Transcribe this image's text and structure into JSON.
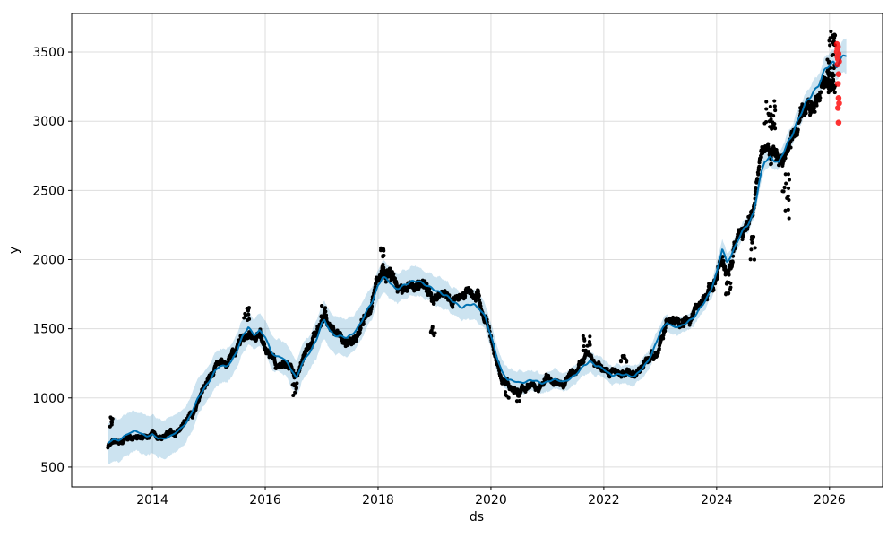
{
  "chart_data": {
    "type": "scatter",
    "subtype": "prophet-forecast (observed points + forecast line + uncertainty band + anomalies)",
    "title": "",
    "xlabel": "ds",
    "ylabel": "y",
    "xlim": [
      2012.57,
      2026.94
    ],
    "ylim": [
      357,
      3779
    ],
    "x_ticks": [
      2014,
      2016,
      2018,
      2020,
      2022,
      2024,
      2026
    ],
    "y_ticks": [
      500,
      1000,
      1500,
      2000,
      2500,
      3000,
      3500
    ],
    "grid": true,
    "legend": false,
    "colors": {
      "forecast_line": "#0072B2",
      "uncertainty_band": "rgba(0,114,178,0.2)",
      "observed_points": "#000000",
      "anomaly_points": "#ff0000",
      "gridline": "#dddddd",
      "frame": "#000000"
    },
    "forecast_line": {
      "name": "yhat",
      "x": [
        2013.21,
        2013.3,
        2013.4,
        2013.5,
        2013.6,
        2013.7,
        2013.8,
        2013.9,
        2014.0,
        2014.1,
        2014.2,
        2014.3,
        2014.45,
        2014.6,
        2014.7,
        2014.8,
        2014.9,
        2015.0,
        2015.1,
        2015.2,
        2015.3,
        2015.4,
        2015.5,
        2015.6,
        2015.7,
        2015.8,
        2015.9,
        2016.0,
        2016.1,
        2016.2,
        2016.3,
        2016.4,
        2016.5,
        2016.55,
        2016.65,
        2016.8,
        2016.9,
        2017.0,
        2017.05,
        2017.15,
        2017.25,
        2017.35,
        2017.45,
        2017.55,
        2017.62,
        2017.7,
        2017.8,
        2017.9,
        2018.0,
        2018.08,
        2018.18,
        2018.3,
        2018.4,
        2018.5,
        2018.6,
        2018.7,
        2018.8,
        2018.9,
        2019.0,
        2019.1,
        2019.2,
        2019.3,
        2019.4,
        2019.5,
        2019.6,
        2019.7,
        2019.8,
        2019.9,
        2020.0,
        2020.1,
        2020.2,
        2020.3,
        2020.4,
        2020.5,
        2020.7,
        2020.9,
        2021.1,
        2021.3,
        2021.5,
        2021.65,
        2021.75,
        2021.85,
        2022.0,
        2022.15,
        2022.3,
        2022.4,
        2022.55,
        2022.7,
        2022.85,
        2023.0,
        2023.12,
        2023.22,
        2023.35,
        2023.5,
        2023.65,
        2023.8,
        2023.9,
        2024.0,
        2024.1,
        2024.18,
        2024.28,
        2024.4,
        2024.55,
        2024.65,
        2024.75,
        2024.85,
        2024.95,
        2025.05,
        2025.1,
        2025.2,
        2025.3,
        2025.4,
        2025.5,
        2025.6,
        2025.7,
        2025.8,
        2025.9,
        2026.0,
        2026.07,
        2026.12,
        2026.18,
        2026.25,
        2026.3
      ],
      "y": [
        672,
        700,
        688,
        726,
        750,
        758,
        742,
        726,
        736,
        704,
        706,
        722,
        756,
        820,
        900,
        990,
        1056,
        1120,
        1190,
        1228,
        1226,
        1270,
        1340,
        1440,
        1516,
        1462,
        1480,
        1438,
        1342,
        1300,
        1288,
        1248,
        1184,
        1145,
        1240,
        1340,
        1420,
        1532,
        1556,
        1480,
        1456,
        1444,
        1428,
        1468,
        1502,
        1548,
        1620,
        1700,
        1822,
        1872,
        1842,
        1794,
        1806,
        1816,
        1836,
        1856,
        1830,
        1794,
        1782,
        1770,
        1740,
        1700,
        1678,
        1660,
        1670,
        1668,
        1650,
        1590,
        1440,
        1300,
        1190,
        1130,
        1118,
        1112,
        1126,
        1110,
        1128,
        1122,
        1160,
        1240,
        1268,
        1230,
        1212,
        1162,
        1166,
        1172,
        1152,
        1220,
        1320,
        1468,
        1552,
        1520,
        1506,
        1558,
        1608,
        1700,
        1792,
        1904,
        2072,
        1976,
        2060,
        2160,
        2250,
        2340,
        2550,
        2700,
        2740,
        2726,
        2700,
        2780,
        2870,
        2980,
        3060,
        3130,
        3210,
        3270,
        3345,
        3400,
        3428,
        3412,
        3448,
        3465,
        3470
      ]
    },
    "uncertainty_band": {
      "name": "yhat_lower / yhat_upper",
      "x": [
        2013.21,
        2014.0,
        2015.0,
        2015.8,
        2016.5,
        2017.0,
        2017.5,
        2018.0,
        2018.7,
        2019.5,
        2020.1,
        2020.4,
        2021.0,
        2021.5,
        2022.0,
        2022.5,
        2023.0,
        2023.5,
        2024.0,
        2024.5,
        2025.0,
        2025.5,
        2025.9,
        2026.1,
        2026.3
      ],
      "half_width": [
        150,
        140,
        125,
        115,
        120,
        140,
        130,
        110,
        105,
        100,
        95,
        80,
        70,
        68,
        72,
        70,
        62,
        58,
        62,
        56,
        60,
        70,
        80,
        95,
        118
      ]
    },
    "observed_points": {
      "name": "y (daily observations)",
      "start": 2013.21,
      "end": 2026.1,
      "per_year": 261,
      "noise": {
        "seed": 42,
        "phi": 0.982,
        "step_sd": 0.33,
        "frac": 0.0165,
        "daily_frac": 0.005,
        "clip_frac": 0.075
      }
    },
    "outlier_clusters": [
      {
        "t0": 2013.24,
        "t1": 2013.3,
        "lo": 790,
        "hi": 862,
        "n": 8
      },
      {
        "t0": 2015.62,
        "t1": 2015.74,
        "lo": 1560,
        "hi": 1655,
        "n": 10
      },
      {
        "t0": 2016.48,
        "t1": 2016.57,
        "lo": 1015,
        "hi": 1115,
        "n": 10
      },
      {
        "t0": 2016.98,
        "t1": 2017.1,
        "lo": 1580,
        "hi": 1668,
        "n": 8
      },
      {
        "t0": 2018.03,
        "t1": 2018.11,
        "lo": 2015,
        "hi": 2088,
        "n": 8
      },
      {
        "t0": 2018.92,
        "t1": 2019.01,
        "lo": 1448,
        "hi": 1535,
        "n": 10
      },
      {
        "t0": 2020.25,
        "t1": 2020.52,
        "lo": 975,
        "hi": 1072,
        "n": 14
      },
      {
        "t0": 2021.62,
        "t1": 2021.76,
        "lo": 1335,
        "hi": 1456,
        "n": 12
      },
      {
        "t0": 2022.3,
        "t1": 2022.42,
        "lo": 1240,
        "hi": 1318,
        "n": 8
      },
      {
        "t0": 2024.16,
        "t1": 2024.26,
        "lo": 1740,
        "hi": 1860,
        "n": 10
      },
      {
        "t0": 2024.6,
        "t1": 2024.68,
        "lo": 1972,
        "hi": 2168,
        "n": 9
      },
      {
        "t0": 2024.85,
        "t1": 2025.04,
        "lo": 2935,
        "hi": 3150,
        "n": 22
      },
      {
        "t0": 2025.16,
        "t1": 2025.29,
        "lo": 2295,
        "hi": 2655,
        "n": 16
      },
      {
        "t0": 2025.94,
        "t1": 2026.1,
        "lo": 3240,
        "hi": 3655,
        "n": 34
      }
    ],
    "anomaly_points": {
      "name": "anomalies (actual vs forecast)",
      "points": [
        [
          2026.13,
          3558
        ],
        [
          2026.15,
          3540
        ],
        [
          2026.14,
          3522
        ],
        [
          2026.13,
          3502
        ],
        [
          2026.16,
          3488
        ],
        [
          2026.14,
          3468
        ],
        [
          2026.15,
          3450
        ],
        [
          2026.17,
          3432
        ],
        [
          2026.14,
          3410
        ],
        [
          2026.16,
          3340
        ],
        [
          2026.15,
          3270
        ],
        [
          2026.16,
          3168
        ],
        [
          2026.17,
          3130
        ],
        [
          2026.15,
          3096
        ],
        [
          2026.16,
          2990
        ]
      ]
    }
  }
}
